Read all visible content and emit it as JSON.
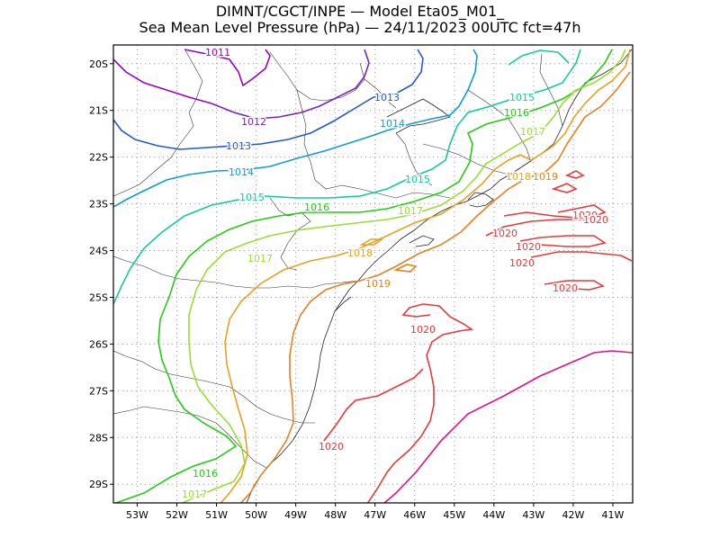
{
  "title": {
    "line1": "DIMNT/CGCT/INPE —  Model Eta05_M01_",
    "line2": "Sea Mean Level Pressure (hPa) — 24/11/2023 00UTC fct=47h"
  },
  "map": {
    "lon_range": [
      -53.6,
      -40.5
    ],
    "lat_range": [
      -29.4,
      -19.6
    ],
    "lon_ticks": [
      "53W",
      "52W",
      "51W",
      "50W",
      "49W",
      "48W",
      "47W",
      "46W",
      "45W",
      "44W",
      "43W",
      "42W",
      "41W"
    ],
    "lat_ticks": [
      "20S",
      "21S",
      "22S",
      "23S",
      "24S",
      "25S",
      "26S",
      "27S",
      "28S",
      "29S"
    ],
    "grid": true
  },
  "contour_colors": {
    "1011": "#9900cc",
    "1012": "#7a22cc",
    "1013": "#2255dd",
    "1014": "#1199dd",
    "1015": "#11cc99",
    "1016": "#22cc11",
    "1017": "#99dd33",
    "1018": "#e8a020",
    "1019": "#e87f20",
    "1020": "#e83838",
    "1021": "#e0108a"
  },
  "contour_labels": [
    {
      "text": "1011",
      "lvl": "1011"
    },
    {
      "text": "1012",
      "lvl": "1012"
    },
    {
      "text": "1013",
      "lvl": "1013"
    },
    {
      "text": "1013",
      "lvl": "1013"
    },
    {
      "text": "1014",
      "lvl": "1014"
    },
    {
      "text": "1014",
      "lvl": "1014"
    },
    {
      "text": "1015",
      "lvl": "1015"
    },
    {
      "text": "1015",
      "lvl": "1015"
    },
    {
      "text": "1015",
      "lvl": "1015"
    },
    {
      "text": "1016",
      "lvl": "1016"
    },
    {
      "text": "1016",
      "lvl": "1016"
    },
    {
      "text": "1016",
      "lvl": "1016"
    },
    {
      "text": "1017",
      "lvl": "1017"
    },
    {
      "text": "1017",
      "lvl": "1017"
    },
    {
      "text": "1017",
      "lvl": "1017"
    },
    {
      "text": "1017",
      "lvl": "1017"
    },
    {
      "text": "1018",
      "lvl": "1018"
    },
    {
      "text": "1018",
      "lvl": "1018"
    },
    {
      "text": "1019",
      "lvl": "1019"
    },
    {
      "text": "1019",
      "lvl": "1019"
    },
    {
      "text": "1020",
      "lvl": "1020"
    },
    {
      "text": "1020",
      "lvl": "1020"
    },
    {
      "text": "1020",
      "lvl": "1020"
    },
    {
      "text": "1020",
      "lvl": "1020"
    },
    {
      "text": "1020",
      "lvl": "1020"
    },
    {
      "text": "1020",
      "lvl": "1020"
    },
    {
      "text": "1020",
      "lvl": "1020"
    },
    {
      "text": "1020",
      "lvl": "1020"
    }
  ]
}
